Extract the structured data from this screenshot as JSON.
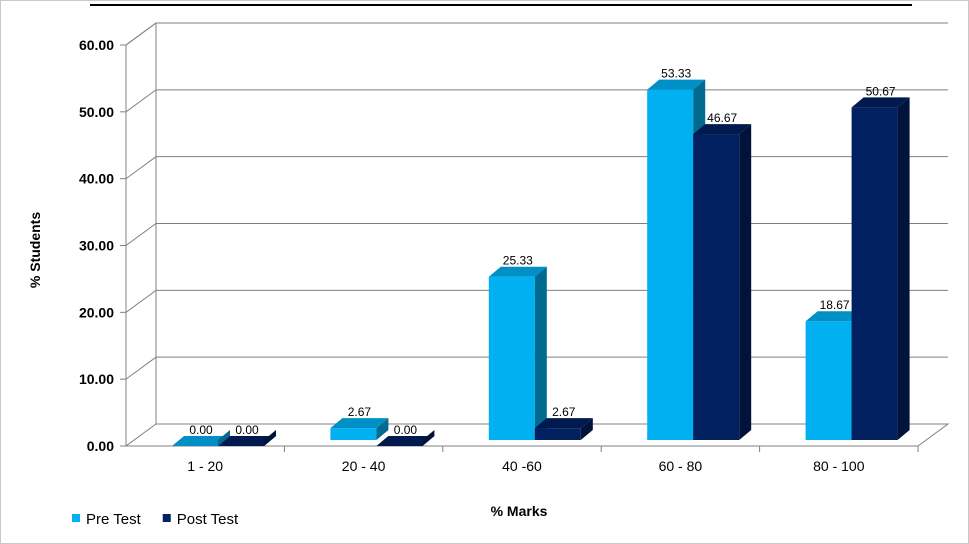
{
  "chart_data": {
    "type": "bar",
    "title": "",
    "xlabel": "% Marks",
    "ylabel": "% Students",
    "categories": [
      "1 - 20",
      "20 - 40",
      "40 -60",
      "60 - 80",
      "80 - 100"
    ],
    "series": [
      {
        "name": "Pre Test",
        "values": [
          0.0,
          2.67,
          25.33,
          53.33,
          18.67
        ],
        "labels": [
          "0.00",
          "2.67",
          "25.33",
          "53.33",
          "18.67"
        ],
        "color": "#00b0f0"
      },
      {
        "name": "Post Test",
        "values": [
          0.0,
          0.0,
          2.67,
          46.67,
          50.67
        ],
        "labels": [
          "0.00",
          "0.00",
          "2.67",
          "46.67",
          "50.67"
        ],
        "color": "#002060"
      }
    ],
    "yticks": [
      "0.00",
      "10.00",
      "20.00",
      "30.00",
      "40.00",
      "50.00",
      "60.00"
    ],
    "ylim": [
      0,
      60
    ],
    "grid": true,
    "legend": "bottom-left",
    "style": "3d-clustered-column"
  }
}
